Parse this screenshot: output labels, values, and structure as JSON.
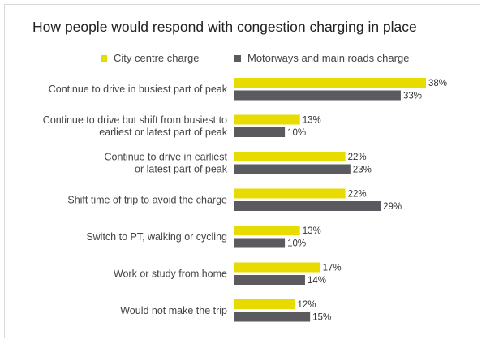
{
  "chart_data": {
    "type": "bar",
    "orientation": "horizontal",
    "title": "How people would respond with congestion charging in place",
    "categories": [
      [
        "Continue to drive in busiest part of peak"
      ],
      [
        "Continue to drive but shift from busiest to",
        "earliest or latest part of peak"
      ],
      [
        "Continue to drive in earliest",
        "or latest part of peak"
      ],
      [
        "Shift time of trip to avoid the charge"
      ],
      [
        "Switch to PT, walking or cycling"
      ],
      [
        "Work or study from home"
      ],
      [
        "Would not make the trip"
      ]
    ],
    "series": [
      {
        "name": "City centre charge",
        "color": "#e8db00",
        "values": [
          38,
          13,
          22,
          22,
          13,
          17,
          12
        ],
        "labels": [
          "38%",
          "13%",
          "22%",
          "22%",
          "13%",
          "17%",
          "12%"
        ]
      },
      {
        "name": "Motorways and main roads charge",
        "color": "#5a5a5f",
        "values": [
          33,
          10,
          23,
          29,
          10,
          14,
          15
        ],
        "labels": [
          "33%",
          "10%",
          "23%",
          "29%",
          "10%",
          "14%",
          "15%"
        ]
      }
    ],
    "xlim": [
      0,
      38
    ],
    "grid": false,
    "legend_position": "top"
  }
}
